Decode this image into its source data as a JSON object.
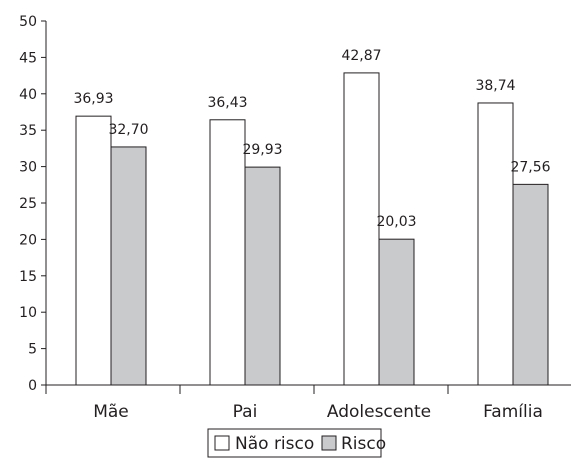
{
  "chart_data": {
    "type": "bar",
    "categories": [
      "Mãe",
      "Pai",
      "Adolescente",
      "Família"
    ],
    "series": [
      {
        "name": "Não risco",
        "values": [
          36.93,
          36.43,
          42.87,
          38.74
        ],
        "labels": [
          "36,93",
          "36,43",
          "42,87",
          "38,74"
        ],
        "color": "#ffffff"
      },
      {
        "name": "Risco",
        "values": [
          32.7,
          29.93,
          20.03,
          27.56
        ],
        "labels": [
          "32,70",
          "29,93",
          "20,03",
          "27,56"
        ],
        "color": "#c9cacc"
      }
    ],
    "ylim": [
      0,
      50
    ],
    "yticks": [
      0,
      5,
      10,
      15,
      20,
      25,
      30,
      35,
      40,
      45,
      50
    ],
    "ytick_labels": [
      "0",
      "5",
      "10",
      "15",
      "20",
      "25",
      "30",
      "35",
      "40",
      "45",
      "50"
    ],
    "title": "",
    "xlabel": "",
    "ylabel": "",
    "grid": false,
    "legend_position": "bottom-center",
    "axis_color": "#231f20"
  }
}
